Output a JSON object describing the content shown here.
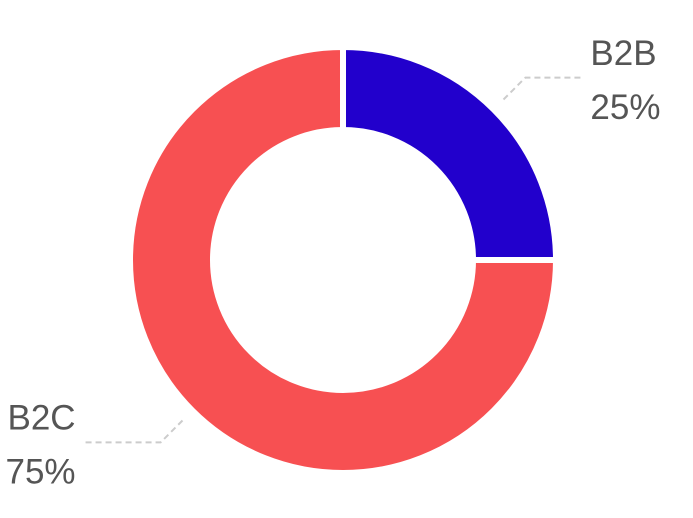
{
  "chart_data": {
    "type": "pie",
    "donut": true,
    "categories": [
      "B2B",
      "B2C"
    ],
    "values": [
      25,
      75
    ],
    "value_labels": [
      "25%",
      "75%"
    ],
    "colors": [
      "#2200cc",
      "#f75052"
    ]
  }
}
